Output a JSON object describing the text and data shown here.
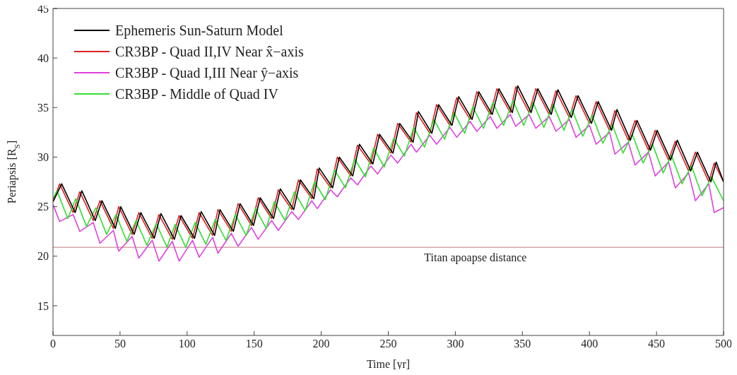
{
  "chart_data": {
    "type": "line",
    "xlabel": "Time [yr]",
    "ylabel": "Periapsis [R$_{S}$]",
    "xlim": [
      0,
      500
    ],
    "xticks": [
      0,
      50,
      100,
      150,
      200,
      250,
      300,
      350,
      400,
      450,
      500
    ],
    "ylim": [
      12,
      45
    ],
    "yticks": [
      15,
      20,
      25,
      30,
      35,
      40,
      45
    ],
    "grid": false,
    "legend": "top left",
    "marker": "none",
    "line_style": "solid",
    "ref_lines": [
      {
        "axis": "y",
        "value": 20.9,
        "label": "Titan apoapse distance",
        "color": "#d4a8a8"
      }
    ],
    "series": [
      {
        "name": "Ephemeris Sun-Saturn Model",
        "color": "#000000",
        "x": [
          0,
          6.5,
          16.5,
          21.5,
          31.5,
          36.5,
          46.5,
          50.5,
          60.5,
          65.5,
          75.5,
          80.5,
          90.5,
          95.5,
          105.5,
          110.5,
          120.5,
          124.5,
          134.5,
          139.5,
          149.5,
          154.5,
          164.5,
          169.5,
          179.5,
          184.5,
          194.5,
          198.5,
          208.5,
          213.5,
          223.5,
          228.5,
          238.5,
          243.5,
          253.5,
          258.5,
          268.5,
          272.5,
          282.5,
          287.5,
          297.5,
          302.5,
          312.5,
          317.5,
          327.5,
          332.5,
          342.5,
          346.5,
          356.5,
          361.5,
          371.5,
          376.5,
          386.5,
          391.5,
          401.5,
          406.5,
          416.5,
          420.5,
          430.5,
          435.5,
          445.5,
          450.5,
          460.5,
          465.5,
          475.5,
          480.5,
          490.5,
          494.5,
          500
        ],
        "values": [
          25.5,
          27.3,
          24.4,
          26.6,
          23.6,
          25.6,
          22.8,
          25.0,
          22.2,
          24.4,
          21.8,
          24.3,
          21.7,
          24.1,
          21.8,
          24.5,
          22.1,
          24.7,
          22.5,
          25.3,
          23.1,
          25.9,
          23.8,
          26.8,
          24.7,
          27.7,
          25.8,
          28.9,
          26.9,
          30.0,
          28.1,
          31.3,
          29.3,
          32.3,
          30.4,
          33.4,
          31.5,
          34.6,
          32.4,
          35.3,
          33.2,
          36.1,
          33.8,
          36.6,
          34.3,
          36.9,
          34.5,
          37.2,
          34.5,
          36.9,
          34.3,
          36.8,
          34.0,
          36.2,
          33.4,
          35.6,
          32.7,
          34.8,
          31.7,
          33.7,
          30.7,
          32.7,
          29.7,
          31.7,
          28.6,
          30.5,
          27.5,
          29.5,
          27.5
        ]
      },
      {
        "name": "CR3BP - Quad II,IV Near x̂−axis",
        "color": "#e02020",
        "x": [
          0,
          5,
          15,
          20,
          30,
          35,
          45,
          49,
          59,
          64,
          74,
          79,
          89,
          94,
          104,
          109,
          119,
          123,
          133,
          138,
          148,
          153,
          163,
          168,
          178,
          183,
          193,
          197,
          207,
          212,
          222,
          227,
          237,
          242,
          252,
          257,
          267,
          271,
          281,
          286,
          296,
          301,
          311,
          316,
          326,
          331,
          341,
          345,
          355,
          360,
          370,
          375,
          385,
          390,
          400,
          405,
          415,
          419,
          429,
          434,
          444,
          449,
          459,
          464,
          474,
          479,
          489,
          493,
          500
        ],
        "values": [
          25.5,
          27.3,
          24.4,
          26.5,
          23.6,
          25.6,
          22.8,
          25.0,
          22.2,
          24.4,
          21.8,
          24.2,
          21.7,
          24.1,
          21.8,
          24.4,
          22.1,
          24.7,
          22.5,
          25.3,
          23.1,
          25.9,
          23.8,
          26.7,
          24.7,
          27.7,
          25.8,
          28.8,
          26.9,
          30.0,
          28.1,
          31.2,
          29.3,
          32.3,
          30.4,
          33.4,
          31.5,
          34.5,
          32.4,
          35.3,
          33.2,
          36.0,
          33.8,
          36.6,
          34.3,
          36.9,
          34.5,
          37.1,
          34.5,
          36.9,
          34.3,
          36.7,
          34.0,
          36.2,
          33.4,
          35.6,
          32.7,
          34.7,
          31.7,
          33.7,
          30.7,
          32.7,
          29.7,
          31.6,
          28.6,
          30.5,
          27.5,
          29.4,
          27.5
        ]
      },
      {
        "name": "CR3BP - Quad I,III Near ŷ−axis",
        "color": "#e040e0",
        "x": [
          0,
          5,
          15,
          20,
          30,
          35,
          45,
          49,
          59,
          64,
          74,
          79,
          89,
          94,
          104,
          109,
          119,
          123,
          133,
          138,
          148,
          153,
          163,
          168,
          178,
          183,
          193,
          197,
          207,
          212,
          222,
          227,
          237,
          242,
          252,
          257,
          267,
          271,
          281,
          286,
          296,
          301,
          311,
          316,
          326,
          331,
          341,
          345,
          355,
          360,
          370,
          375,
          385,
          390,
          400,
          405,
          415,
          419,
          429,
          434,
          444,
          449,
          459,
          464,
          474,
          479,
          489,
          493,
          500
        ],
        "values": [
          25.2,
          23.5,
          24.2,
          22.5,
          23.4,
          21.3,
          22.6,
          20.5,
          22.0,
          19.8,
          21.6,
          19.5,
          21.5,
          19.5,
          21.6,
          19.9,
          21.9,
          20.3,
          22.3,
          21.0,
          22.9,
          21.7,
          23.6,
          22.6,
          24.5,
          23.7,
          25.6,
          24.8,
          26.7,
          26.0,
          27.9,
          27.2,
          29.1,
          28.3,
          30.2,
          29.4,
          31.3,
          30.5,
          32.2,
          31.3,
          33.0,
          32.0,
          33.6,
          32.6,
          34.1,
          32.9,
          34.3,
          33.1,
          34.3,
          32.9,
          34.1,
          32.6,
          33.8,
          32.0,
          33.2,
          31.3,
          32.5,
          30.3,
          31.5,
          29.2,
          30.5,
          28.1,
          29.5,
          26.9,
          28.4,
          25.6,
          27.3,
          24.4,
          24.9
        ]
      },
      {
        "name": "CR3BP - Middle of Quad IV",
        "color": "#30e030",
        "x": [
          0,
          3,
          11,
          17,
          25,
          32,
          40,
          47,
          55,
          62,
          70,
          77,
          85,
          91,
          99,
          106,
          114,
          121,
          129,
          136,
          144,
          151,
          159,
          165,
          173,
          180,
          188,
          195,
          203,
          210,
          218,
          225,
          233,
          239,
          247,
          254,
          262,
          269,
          277,
          284,
          292,
          299,
          307,
          313,
          321,
          328,
          336,
          343,
          351,
          358,
          366,
          373,
          381,
          387,
          395,
          402,
          410,
          417,
          425,
          432,
          440,
          447,
          455,
          461,
          469,
          476,
          484,
          491,
          500
        ],
        "values": [
          25.8,
          26.6,
          23.8,
          25.8,
          23.0,
          24.9,
          22.2,
          24.2,
          21.5,
          23.6,
          21.1,
          23.3,
          20.9,
          23.2,
          20.9,
          23.4,
          21.2,
          23.7,
          21.6,
          24.2,
          22.1,
          24.8,
          22.8,
          25.5,
          23.6,
          26.5,
          24.6,
          27.5,
          25.7,
          28.7,
          26.9,
          29.8,
          28.0,
          30.9,
          29.0,
          31.9,
          30.1,
          33.0,
          31.0,
          33.8,
          31.8,
          34.5,
          32.4,
          35.1,
          32.9,
          35.5,
          33.2,
          35.7,
          33.2,
          35.5,
          33.0,
          35.3,
          32.7,
          34.8,
          32.1,
          34.2,
          31.4,
          33.3,
          30.4,
          32.3,
          29.4,
          31.3,
          28.4,
          30.2,
          27.3,
          29.1,
          26.1,
          28.0,
          25.6
        ]
      }
    ]
  }
}
